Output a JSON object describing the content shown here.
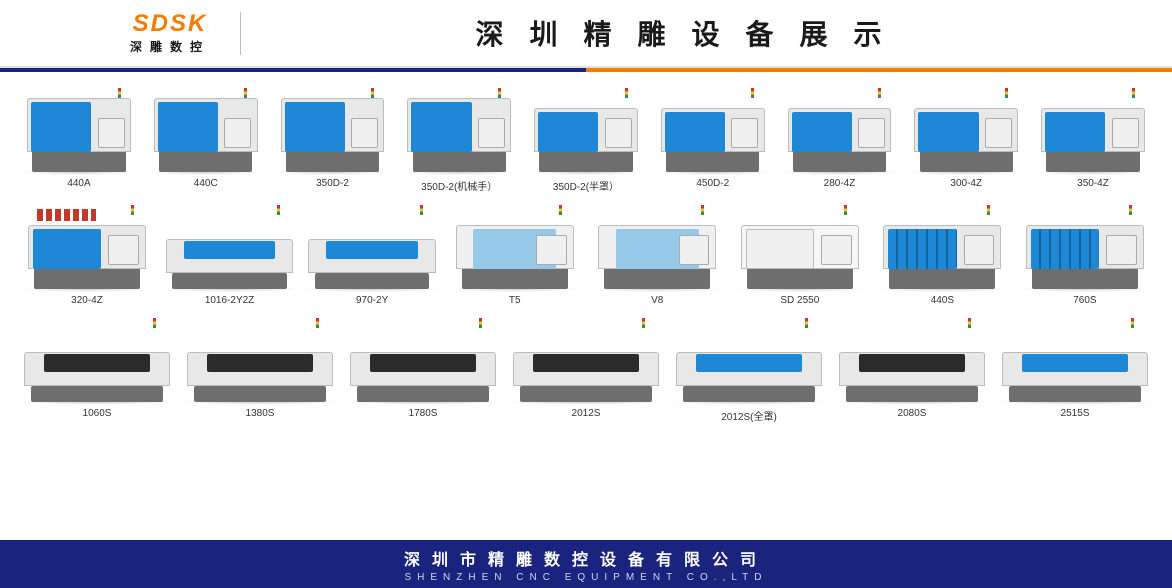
{
  "brand": {
    "logo_main": "SDSK",
    "logo_sub": "深雕数控"
  },
  "title": "深圳精雕设备展示",
  "colors": {
    "brand_orange": "#f57c00",
    "brand_navy": "#1a237e",
    "machine_blue": "#1e88d6",
    "machine_grey": "#6e6e6e",
    "body_grey": "#e8e8e8"
  },
  "accent_bar": {
    "left": "#1a237e",
    "right": "#f57c00"
  },
  "footer": {
    "cn": "深圳市精雕数控设备有限公司",
    "en": "SHENZHEN CNC EQUIPMENT CO.,LTD"
  },
  "rows": [
    {
      "cols": 9,
      "items": [
        {
          "label": "440A",
          "variant": "tall"
        },
        {
          "label": "440C",
          "variant": "tall"
        },
        {
          "label": "350D-2",
          "variant": "tall"
        },
        {
          "label": "350D-2(机械手）",
          "variant": "tall"
        },
        {
          "label": "350D-2(半罩）",
          "variant": ""
        },
        {
          "label": "450D-2",
          "variant": ""
        },
        {
          "label": "280-4Z",
          "variant": ""
        },
        {
          "label": "300-4Z",
          "variant": ""
        },
        {
          "label": "350-4Z",
          "variant": ""
        }
      ]
    },
    {
      "cols": 8,
      "items": [
        {
          "label": "320-4Z",
          "variant": "spindles"
        },
        {
          "label": "1016-2Y2Z",
          "variant": "long"
        },
        {
          "label": "970-2Y",
          "variant": "long"
        },
        {
          "label": "T5",
          "variant": "box"
        },
        {
          "label": "V8",
          "variant": "box"
        },
        {
          "label": "SD 2550",
          "variant": "fiveax"
        },
        {
          "label": "440S",
          "variant": "slot"
        },
        {
          "label": "760S",
          "variant": "slot"
        }
      ]
    },
    {
      "cols": 7,
      "items": [
        {
          "label": "1060S",
          "variant": "long dark"
        },
        {
          "label": "1380S",
          "variant": "long dark"
        },
        {
          "label": "1780S",
          "variant": "long dark"
        },
        {
          "label": "2012S",
          "variant": "long dark"
        },
        {
          "label": "2012S(全罩)",
          "variant": "long"
        },
        {
          "label": "2080S",
          "variant": "long dark"
        },
        {
          "label": "2515S",
          "variant": "long"
        }
      ]
    }
  ]
}
